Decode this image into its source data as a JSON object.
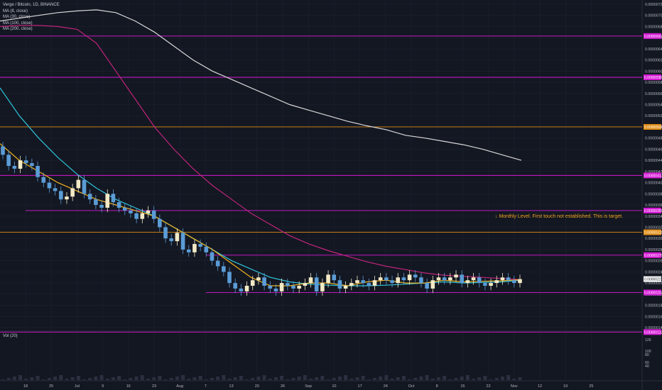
{
  "legend": {
    "title": "Verge / Bitcoin, 1D, BINANCE",
    "ma8": "MA (8, close)",
    "ma30": "MA (30, close)",
    "ma100": "MA (100, close)",
    "ma200": "MA (200, close)"
  },
  "volume": {
    "label": "Vol (20)",
    "ticks": [
      "126",
      "100",
      "80",
      "60",
      "40"
    ]
  },
  "annotation": "Monthly Level. First touch not established. This is target.",
  "colors": {
    "background": "#131722",
    "up": "#f2e9c6",
    "down": "#5b9cd6",
    "ma8": "#f0b41e",
    "ma30": "#2ec4da",
    "ma100": "#c2247d",
    "ma200": "#d8d8d8",
    "magenta_level": "#d619d6",
    "orange_level": "#e08c14"
  },
  "chart_data": {
    "type": "candlestick",
    "y_ticks": [
      "0.00000720",
      "0.00000700",
      "0.00000680",
      "0.00000660",
      "0.00000640",
      "0.00000620",
      "0.00000600",
      "0.00000580",
      "0.00000560",
      "0.00000540",
      "0.00000520",
      "0.00000500",
      "0.00000480",
      "0.00000460",
      "0.00000440",
      "0.00000420",
      "0.00000400",
      "0.00000380",
      "0.00000360",
      "0.00000340",
      "0.00000320",
      "0.00000300",
      "0.00000280",
      "0.00000260",
      "0.00000240",
      "0.00000220",
      "0.00000200",
      "0.00000180",
      "0.00000160",
      "0.00000140"
    ],
    "x_ticks": [
      "18",
      "25",
      "Jul",
      "9",
      "16",
      "23",
      "Aug",
      "7",
      "13",
      "20",
      "26",
      "Sep",
      "10",
      "17",
      "24",
      "Oct",
      "8",
      "15",
      "22",
      "Nov",
      "12",
      "19",
      "25"
    ],
    "current_price": "0.00000227",
    "levels": [
      {
        "price": 6.63e-06,
        "color": "magenta",
        "label": "0.00000663"
      },
      {
        "price": 5.89e-06,
        "color": "magenta",
        "label": "0.00000589"
      },
      {
        "price": 5e-06,
        "color": "orange",
        "label": "0.00000500"
      },
      {
        "price": 4.13e-06,
        "color": "magenta",
        "label": "0.00000413"
      },
      {
        "price": 3.5e-06,
        "color": "magenta",
        "label": "0.00000350"
      },
      {
        "price": 3.11e-06,
        "color": "orange",
        "label": "0.00000311"
      },
      {
        "price": 2.7e-06,
        "color": "magenta",
        "label": "0.00000270"
      },
      {
        "price": 2.03e-06,
        "color": "magenta",
        "label": "0.00000203"
      },
      {
        "price": 1.32e-06,
        "color": "magenta",
        "label": "0.00000132"
      }
    ],
    "candles_close": [
      4.5,
      4.3,
      4.25,
      4.4,
      4.35,
      4.3,
      4.1,
      4.0,
      3.9,
      3.85,
      3.7,
      3.75,
      3.9,
      4.05,
      3.8,
      3.7,
      3.6,
      3.55,
      3.8,
      3.65,
      3.55,
      3.5,
      3.45,
      3.35,
      3.45,
      3.5,
      3.35,
      3.2,
      3.0,
      2.95,
      3.1,
      2.8,
      2.75,
      2.9,
      2.85,
      2.75,
      2.6,
      2.5,
      2.4,
      2.2,
      2.1,
      2.05,
      2.15,
      2.25,
      2.3,
      2.15,
      2.1,
      2.05,
      2.2,
      2.15,
      2.1,
      2.15,
      2.2,
      2.3,
      2.05,
      2.2,
      2.35,
      2.25,
      2.1,
      2.15,
      2.2,
      2.25,
      2.2,
      2.15,
      2.25,
      2.3,
      2.25,
      2.2,
      2.3,
      2.25,
      2.35,
      2.3,
      2.2,
      2.1,
      2.25,
      2.3,
      2.25,
      2.3,
      2.35,
      2.2,
      2.25,
      2.3,
      2.2,
      2.15,
      2.2,
      2.25,
      2.3,
      2.25,
      2.2,
      2.27
    ],
    "ma200": [
      6.9,
      6.95,
      7.0,
      7.05,
      7.08,
      7.1,
      7.05,
      6.9,
      6.7,
      6.45,
      6.2,
      6.0,
      5.85,
      5.7,
      5.55,
      5.4,
      5.3,
      5.2,
      5.1,
      5.02,
      4.95,
      4.85,
      4.8,
      4.74,
      4.68,
      4.6,
      4.5,
      4.4
    ],
    "ma100": [
      6.8,
      6.82,
      6.82,
      6.8,
      6.75,
      6.5,
      6.0,
      5.5,
      5.0,
      4.6,
      4.25,
      3.95,
      3.7,
      3.45,
      3.25,
      3.05,
      2.9,
      2.78,
      2.68,
      2.58,
      2.5,
      2.44,
      2.38,
      2.34,
      2.32,
      2.3,
      2.28,
      2.26
    ],
    "ma30": [
      5.7,
      5.2,
      4.8,
      4.45,
      4.15,
      3.9,
      3.7,
      3.55,
      3.4,
      3.2,
      3.0,
      2.8,
      2.6,
      2.45,
      2.3,
      2.22,
      2.18,
      2.16,
      2.15,
      2.15,
      2.16,
      2.18,
      2.2,
      2.22,
      2.2,
      2.21,
      2.22,
      2.25
    ],
    "ma8": [
      4.7,
      4.4,
      4.2,
      4.0,
      3.85,
      3.7,
      3.6,
      3.5,
      3.4,
      3.2,
      3.0,
      2.8,
      2.55,
      2.3,
      2.15,
      2.15,
      2.2,
      2.2,
      2.15,
      2.22,
      2.25,
      2.2,
      2.2,
      2.25,
      2.22,
      2.23,
      2.24,
      2.26
    ],
    "volume_axis": [
      "126",
      "100",
      "80",
      "60",
      "40"
    ]
  }
}
